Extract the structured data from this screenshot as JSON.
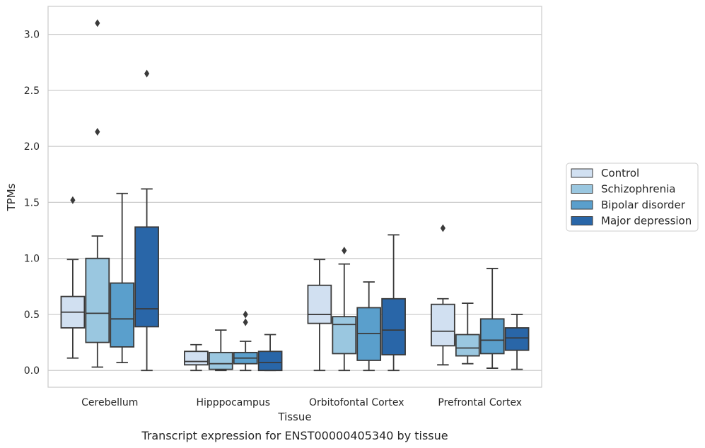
{
  "chart_data": {
    "type": "box",
    "title": "",
    "caption": "Transcript expression for ENST00000405340 by tissue",
    "xlabel": "Tissue",
    "ylabel": "TPMs",
    "ylim": [
      -0.15,
      3.25
    ],
    "yticks": [
      0.0,
      0.5,
      1.0,
      1.5,
      2.0,
      2.5,
      3.0
    ],
    "ytick_labels": [
      "0.0",
      "0.5",
      "1.0",
      "1.5",
      "2.0",
      "2.5",
      "3.0"
    ],
    "grid": "horizontal",
    "legend_position": "right",
    "categories": [
      "Cerebellum",
      "Hipppocampus",
      "Orbitofontal Cortex",
      "Prefrontal Cortex"
    ],
    "series": [
      {
        "name": "Control",
        "color": "#d1e0f1",
        "boxes": [
          {
            "whisker_low": 0.11,
            "q1": 0.38,
            "median": 0.52,
            "q3": 0.66,
            "whisker_high": 0.99,
            "outliers": [
              1.52
            ]
          },
          {
            "whisker_low": 0.0,
            "q1": 0.05,
            "median": 0.08,
            "q3": 0.17,
            "whisker_high": 0.23,
            "outliers": []
          },
          {
            "whisker_low": 0.0,
            "q1": 0.42,
            "median": 0.5,
            "q3": 0.76,
            "whisker_high": 0.99,
            "outliers": []
          },
          {
            "whisker_low": 0.05,
            "q1": 0.22,
            "median": 0.35,
            "q3": 0.59,
            "whisker_high": 0.64,
            "outliers": [
              1.27
            ]
          }
        ]
      },
      {
        "name": "Schizophrenia",
        "color": "#9ac7e0",
        "boxes": [
          {
            "whisker_low": 0.03,
            "q1": 0.25,
            "median": 0.51,
            "q3": 1.0,
            "whisker_high": 1.2,
            "outliers": [
              2.13,
              3.1
            ]
          },
          {
            "whisker_low": 0.0,
            "q1": 0.01,
            "median": 0.06,
            "q3": 0.16,
            "whisker_high": 0.36,
            "outliers": []
          },
          {
            "whisker_low": 0.0,
            "q1": 0.15,
            "median": 0.41,
            "q3": 0.48,
            "whisker_high": 0.95,
            "outliers": [
              1.07
            ]
          },
          {
            "whisker_low": 0.06,
            "q1": 0.13,
            "median": 0.2,
            "q3": 0.32,
            "whisker_high": 0.6,
            "outliers": []
          }
        ]
      },
      {
        "name": "Bipolar disorder",
        "color": "#5a9fcc",
        "boxes": [
          {
            "whisker_low": 0.07,
            "q1": 0.21,
            "median": 0.46,
            "q3": 0.78,
            "whisker_high": 1.58,
            "outliers": []
          },
          {
            "whisker_low": 0.0,
            "q1": 0.06,
            "median": 0.11,
            "q3": 0.16,
            "whisker_high": 0.26,
            "outliers": [
              0.43,
              0.5
            ]
          },
          {
            "whisker_low": 0.0,
            "q1": 0.09,
            "median": 0.33,
            "q3": 0.56,
            "whisker_high": 0.79,
            "outliers": []
          },
          {
            "whisker_low": 0.02,
            "q1": 0.15,
            "median": 0.27,
            "q3": 0.46,
            "whisker_high": 0.91,
            "outliers": []
          }
        ]
      },
      {
        "name": "Major depression",
        "color": "#2966a8",
        "boxes": [
          {
            "whisker_low": 0.0,
            "q1": 0.39,
            "median": 0.55,
            "q3": 1.28,
            "whisker_high": 1.62,
            "outliers": [
              2.65
            ]
          },
          {
            "whisker_low": 0.0,
            "q1": 0.0,
            "median": 0.07,
            "q3": 0.17,
            "whisker_high": 0.32,
            "outliers": []
          },
          {
            "whisker_low": 0.0,
            "q1": 0.14,
            "median": 0.36,
            "q3": 0.64,
            "whisker_high": 1.21,
            "outliers": []
          },
          {
            "whisker_low": 0.01,
            "q1": 0.18,
            "median": 0.29,
            "q3": 0.38,
            "whisker_high": 0.5,
            "outliers": []
          }
        ]
      }
    ]
  }
}
